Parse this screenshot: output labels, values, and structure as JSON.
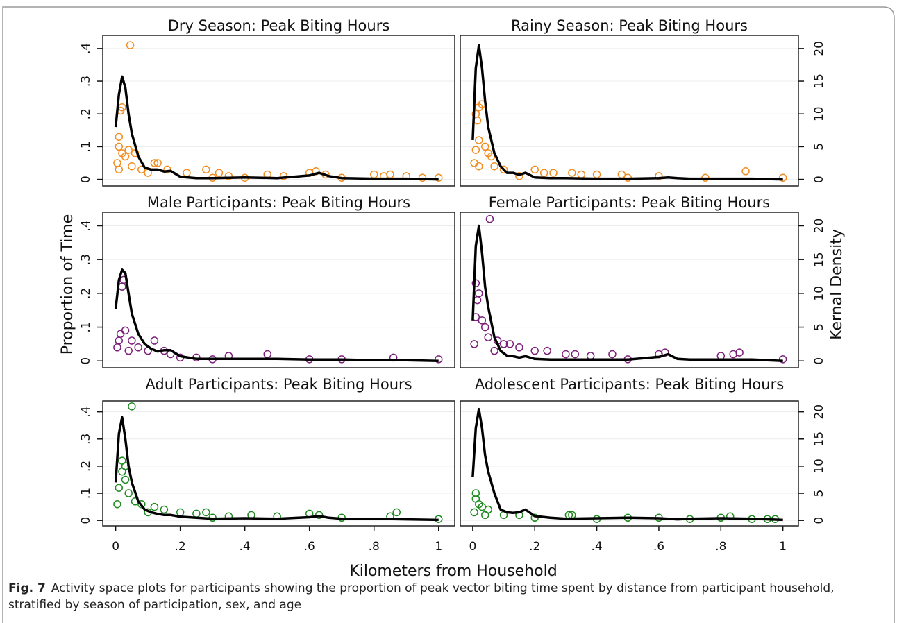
{
  "axes": {
    "ylabel": "Proportion of Time",
    "y2label": "Kernal Density",
    "xlabel": "Kilometers from Household"
  },
  "caption": {
    "label": "Fig. 7",
    "text": "Activity space plots for participants showing the proportion of peak vector biting time spent by distance from participant household, stratified by season of participation, sex, and age"
  },
  "chart_data": [
    {
      "type": "scatter",
      "title": "Dry Season: Peak Biting Hours",
      "xlim": [
        -0.04,
        1.05
      ],
      "ylim": [
        -0.02,
        0.44
      ],
      "y2lim": [
        -1,
        22
      ],
      "yticks": [
        0,
        {
          "value": 0.1,
          "label": ".1"
        },
        {
          "value": 0.2,
          "label": ".2"
        },
        {
          "value": 0.3,
          "label": ".3"
        },
        {
          "value": 0.4,
          "label": ".4"
        }
      ],
      "points": {
        "color": "#f28c1e",
        "x": [
          0.045,
          0.02,
          0.015,
          0.01,
          0.01,
          0.02,
          0.03,
          0.04,
          0.06,
          0.12,
          0.13,
          0.16,
          0.22,
          0.28,
          0.32,
          0.35,
          0.47,
          0.52,
          0.6,
          0.62,
          0.65,
          0.8,
          0.83,
          0.85,
          0.9,
          0.95,
          1,
          0.005,
          0.01,
          0.05,
          0.08,
          0.1,
          0.3,
          0.4,
          0.7
        ],
        "y": [
          0.41,
          0.22,
          0.21,
          0.13,
          0.1,
          0.08,
          0.07,
          0.09,
          0.08,
          0.05,
          0.05,
          0.03,
          0.02,
          0.03,
          0.02,
          0.01,
          0.015,
          0.01,
          0.02,
          0.025,
          0.015,
          0.015,
          0.01,
          0.015,
          0.01,
          0.005,
          0.005,
          0.05,
          0.03,
          0.04,
          0.03,
          0.02,
          0.005,
          0.005,
          0.005
        ]
      },
      "density": {
        "color": "#000000",
        "axis": "y2",
        "x": [
          0,
          0.01,
          0.02,
          0.03,
          0.04,
          0.05,
          0.07,
          0.09,
          0.11,
          0.13,
          0.15,
          0.17,
          0.2,
          0.25,
          0.3,
          0.4,
          0.5,
          0.6,
          0.63,
          0.66,
          0.7,
          0.8,
          0.9,
          1.0
        ],
        "y": [
          8,
          13,
          15.7,
          14,
          10,
          7,
          3.5,
          1.8,
          1.5,
          1.5,
          1.2,
          1.3,
          0.4,
          0.2,
          0.2,
          0.3,
          0.2,
          0.6,
          1,
          0.5,
          0.2,
          0.1,
          0.1,
          0
        ]
      }
    },
    {
      "type": "scatter",
      "title": "Rainy Season: Peak Biting Hours",
      "xlim": [
        -0.04,
        1.05
      ],
      "ylim": [
        -0.02,
        0.44
      ],
      "y2lim": [
        -1,
        22
      ],
      "y2ticks": [
        0,
        5,
        10,
        15,
        20
      ],
      "points": {
        "color": "#f28c1e",
        "x": [
          0.01,
          0.02,
          0.015,
          0.03,
          0.02,
          0.01,
          0.04,
          0.05,
          0.06,
          0.1,
          0.2,
          0.23,
          0.26,
          0.32,
          0.35,
          0.4,
          0.48,
          0.6,
          0.88,
          0.005,
          0.02,
          0.07,
          0.15,
          0.5,
          0.75,
          1
        ],
        "y": [
          0.2,
          0.22,
          0.18,
          0.23,
          0.12,
          0.09,
          0.1,
          0.08,
          0.07,
          0.03,
          0.03,
          0.02,
          0.02,
          0.02,
          0.015,
          0.015,
          0.015,
          0.01,
          0.025,
          0.05,
          0.04,
          0.04,
          0.01,
          0.005,
          0.005,
          0.005
        ]
      },
      "density": {
        "color": "#000000",
        "axis": "y2",
        "x": [
          0,
          0.01,
          0.02,
          0.03,
          0.04,
          0.05,
          0.07,
          0.09,
          0.11,
          0.13,
          0.15,
          0.17,
          0.2,
          0.25,
          0.3,
          0.4,
          0.5,
          0.6,
          0.63,
          0.66,
          0.7,
          0.8,
          0.9,
          1.0
        ],
        "y": [
          6,
          17,
          20.5,
          17,
          12,
          8,
          4,
          2,
          1,
          1,
          0.7,
          1,
          0.3,
          0.2,
          0.2,
          0.1,
          0.1,
          0.2,
          0.3,
          0.2,
          0.1,
          0.1,
          0.1,
          0
        ]
      }
    },
    {
      "type": "scatter",
      "title": "Male Participants: Peak Biting Hours",
      "xlim": [
        -0.04,
        1.05
      ],
      "ylim": [
        -0.02,
        0.44
      ],
      "y2lim": [
        -1,
        22
      ],
      "yticks": [
        0,
        {
          "value": 0.1,
          "label": ".1"
        },
        {
          "value": 0.2,
          "label": ".2"
        },
        {
          "value": 0.3,
          "label": ".3"
        },
        {
          "value": 0.4,
          "label": ".4"
        }
      ],
      "points": {
        "color": "#7b1f7b",
        "x": [
          0.02,
          0.025,
          0.015,
          0.03,
          0.01,
          0.05,
          0.07,
          0.1,
          0.12,
          0.15,
          0.17,
          0.2,
          0.25,
          0.35,
          0.47,
          0.6,
          0.86,
          0.005,
          0.04,
          0.3,
          0.7,
          1
        ],
        "y": [
          0.22,
          0.24,
          0.08,
          0.09,
          0.06,
          0.06,
          0.04,
          0.03,
          0.06,
          0.03,
          0.02,
          0.01,
          0.01,
          0.015,
          0.02,
          0.005,
          0.01,
          0.04,
          0.03,
          0.005,
          0.005,
          0.005
        ]
      },
      "density": {
        "color": "#000000",
        "axis": "y2",
        "x": [
          0,
          0.01,
          0.02,
          0.03,
          0.04,
          0.05,
          0.07,
          0.09,
          0.11,
          0.13,
          0.15,
          0.17,
          0.2,
          0.25,
          0.3,
          0.4,
          0.5,
          0.6,
          0.63,
          0.66,
          0.7,
          0.8,
          0.9,
          1.0
        ],
        "y": [
          7.7,
          12,
          13.5,
          13,
          10,
          7,
          4,
          2.5,
          1.8,
          1.4,
          1.6,
          1.6,
          0.7,
          0.3,
          0.3,
          0.3,
          0.3,
          0.2,
          0.2,
          0.2,
          0.2,
          0.1,
          0.1,
          0
        ]
      }
    },
    {
      "type": "scatter",
      "title": "Female Participants: Peak Biting Hours",
      "xlim": [
        -0.04,
        1.05
      ],
      "ylim": [
        -0.02,
        0.44
      ],
      "y2lim": [
        -1,
        22
      ],
      "y2ticks": [
        0,
        5,
        10,
        15,
        20
      ],
      "points": {
        "color": "#7b1f7b",
        "x": [
          0.055,
          0.01,
          0.02,
          0.015,
          0.01,
          0.03,
          0.04,
          0.05,
          0.08,
          0.1,
          0.12,
          0.15,
          0.2,
          0.24,
          0.3,
          0.33,
          0.38,
          0.45,
          0.6,
          0.62,
          0.8,
          0.84,
          0.86,
          0.005,
          0.07,
          0.5,
          1
        ],
        "y": [
          0.42,
          0.23,
          0.2,
          0.18,
          0.13,
          0.12,
          0.1,
          0.07,
          0.06,
          0.05,
          0.05,
          0.04,
          0.03,
          0.03,
          0.02,
          0.02,
          0.015,
          0.02,
          0.02,
          0.025,
          0.015,
          0.02,
          0.025,
          0.05,
          0.03,
          0.005,
          0.005
        ]
      },
      "density": {
        "color": "#000000",
        "axis": "y2",
        "x": [
          0,
          0.01,
          0.02,
          0.03,
          0.04,
          0.05,
          0.07,
          0.09,
          0.11,
          0.13,
          0.15,
          0.17,
          0.2,
          0.25,
          0.3,
          0.4,
          0.5,
          0.6,
          0.63,
          0.66,
          0.7,
          0.8,
          0.9,
          1.0
        ],
        "y": [
          6,
          17,
          20,
          16,
          11,
          8,
          3.5,
          1.5,
          0.8,
          0.7,
          0.5,
          0.7,
          0.3,
          0.2,
          0.2,
          0.2,
          0.2,
          0.6,
          1,
          0.3,
          0.2,
          0.2,
          0.2,
          0
        ]
      }
    },
    {
      "type": "scatter",
      "title": "Adult Participants: Peak Biting Hours",
      "xlim": [
        -0.04,
        1.05
      ],
      "ylim": [
        -0.02,
        0.44
      ],
      "y2lim": [
        -1,
        22
      ],
      "yticks": [
        0,
        {
          "value": 0.1,
          "label": ".1"
        },
        {
          "value": 0.2,
          "label": ".2"
        },
        {
          "value": 0.3,
          "label": ".3"
        },
        {
          "value": 0.4,
          "label": ".4"
        }
      ],
      "xticks": [
        0,
        {
          "value": 0.2,
          "label": ".2"
        },
        {
          "value": 0.4,
          "label": ".4"
        },
        {
          "value": 0.6,
          "label": ".6"
        },
        {
          "value": 0.8,
          "label": ".8"
        },
        1
      ],
      "points": {
        "color": "#1f8a1f",
        "x": [
          0.05,
          0.02,
          0.03,
          0.02,
          0.03,
          0.01,
          0.04,
          0.06,
          0.08,
          0.12,
          0.15,
          0.2,
          0.25,
          0.28,
          0.35,
          0.42,
          0.5,
          0.6,
          0.63,
          0.7,
          0.85,
          0.87,
          0.005,
          0.1,
          0.3,
          1
        ],
        "y": [
          0.42,
          0.22,
          0.2,
          0.18,
          0.15,
          0.12,
          0.1,
          0.07,
          0.06,
          0.05,
          0.04,
          0.03,
          0.025,
          0.03,
          0.015,
          0.02,
          0.015,
          0.025,
          0.02,
          0.01,
          0.015,
          0.03,
          0.06,
          0.03,
          0.01,
          0.005
        ]
      },
      "density": {
        "color": "#000000",
        "axis": "y2",
        "x": [
          0,
          0.01,
          0.02,
          0.03,
          0.04,
          0.05,
          0.07,
          0.09,
          0.11,
          0.13,
          0.15,
          0.17,
          0.2,
          0.25,
          0.3,
          0.4,
          0.5,
          0.6,
          0.63,
          0.66,
          0.7,
          0.8,
          0.9,
          1.0
        ],
        "y": [
          7,
          16,
          19,
          15,
          10,
          7,
          3.5,
          2,
          1.5,
          1.2,
          1,
          1,
          0.7,
          0.5,
          0.3,
          0.4,
          0.3,
          0.6,
          0.8,
          0.5,
          0.3,
          0.3,
          0.2,
          0.1
        ]
      }
    },
    {
      "type": "scatter",
      "title": "Adolescent Participants: Peak Biting Hours",
      "xlim": [
        -0.04,
        1.05
      ],
      "ylim": [
        -0.02,
        0.44
      ],
      "y2lim": [
        -1,
        22
      ],
      "y2ticks": [
        0,
        5,
        10,
        15,
        20
      ],
      "xticks": [
        0,
        {
          "value": 0.2,
          "label": ".2"
        },
        {
          "value": 0.4,
          "label": ".4"
        },
        {
          "value": 0.6,
          "label": ".6"
        },
        {
          "value": 0.8,
          "label": ".8"
        },
        1
      ],
      "points": {
        "color": "#1f8a1f",
        "x": [
          0.01,
          0.01,
          0.02,
          0.03,
          0.05,
          0.1,
          0.15,
          0.2,
          0.31,
          0.32,
          0.5,
          0.6,
          0.7,
          0.8,
          0.83,
          0.9,
          0.95,
          0.975,
          0.005,
          0.04,
          0.4
        ],
        "y": [
          0.1,
          0.08,
          0.06,
          0.05,
          0.04,
          0.02,
          0.02,
          0.01,
          0.02,
          0.02,
          0.01,
          0.01,
          0.005,
          0.01,
          0.015,
          0.005,
          0.005,
          0.005,
          0.03,
          0.02,
          0.005
        ]
      },
      "density": {
        "color": "#000000",
        "axis": "y2",
        "x": [
          0,
          0.01,
          0.02,
          0.03,
          0.04,
          0.05,
          0.07,
          0.09,
          0.11,
          0.13,
          0.15,
          0.17,
          0.2,
          0.25,
          0.3,
          0.4,
          0.5,
          0.6,
          0.63,
          0.66,
          0.7,
          0.8,
          0.9,
          1.0
        ],
        "y": [
          8,
          17,
          20.5,
          17,
          12,
          9,
          5,
          2,
          1.5,
          1.4,
          1.5,
          2,
          0.8,
          0.5,
          0.3,
          0.4,
          0.5,
          0.4,
          0.3,
          0.2,
          0.3,
          0.4,
          0.3,
          0.1
        ]
      }
    }
  ]
}
